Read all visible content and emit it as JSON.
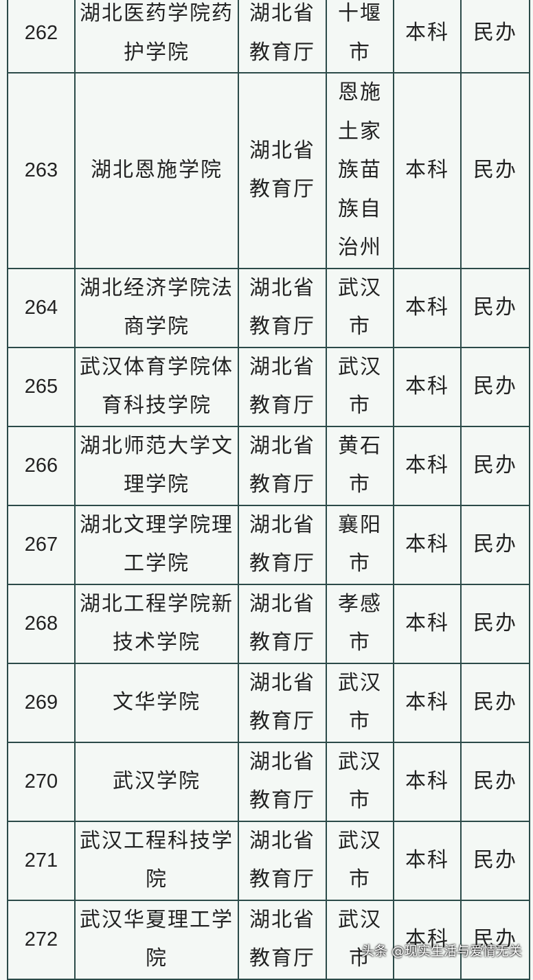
{
  "table": {
    "rows": [
      [
        "262",
        "湖北医药学院药护学院",
        "湖北省教育厅",
        "十堰市",
        "本科",
        "民办"
      ],
      [
        "263",
        "湖北恩施学院",
        "湖北省教育厅",
        "恩施土家族苗族自治州",
        "本科",
        "民办"
      ],
      [
        "264",
        "湖北经济学院法商学院",
        "湖北省教育厅",
        "武汉市",
        "本科",
        "民办"
      ],
      [
        "265",
        "武汉体育学院体育科技学院",
        "湖北省教育厅",
        "武汉市",
        "本科",
        "民办"
      ],
      [
        "266",
        "湖北师范大学文理学院",
        "湖北省教育厅",
        "黄石市",
        "本科",
        "民办"
      ],
      [
        "267",
        "湖北文理学院理工学院",
        "湖北省教育厅",
        "襄阳市",
        "本科",
        "民办"
      ],
      [
        "268",
        "湖北工程学院新技术学院",
        "湖北省教育厅",
        "孝感市",
        "本科",
        "民办"
      ],
      [
        "269",
        "文华学院",
        "湖北省教育厅",
        "武汉市",
        "本科",
        "民办"
      ],
      [
        "270",
        "武汉学院",
        "湖北省教育厅",
        "武汉市",
        "本科",
        "民办"
      ],
      [
        "271",
        "武汉工程科技学院",
        "湖北省教育厅",
        "武汉市",
        "本科",
        "民办"
      ],
      [
        "272",
        "武汉华夏理工学院",
        "湖北省教育厅",
        "武汉市",
        "本科",
        "民办"
      ]
    ]
  },
  "watermark": "头条 @现实生活与爱情无关"
}
